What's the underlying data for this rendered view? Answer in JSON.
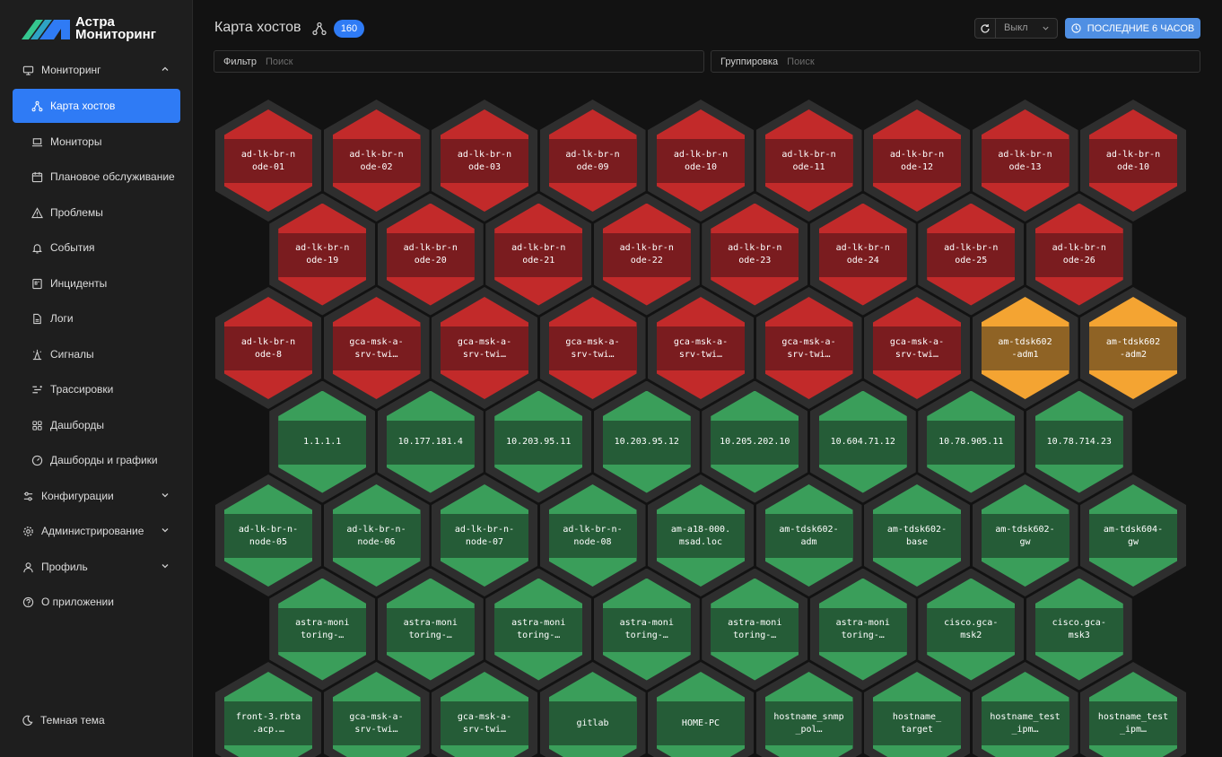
{
  "app": {
    "brand_line1": "Астра",
    "brand_line2": "Мониторинг"
  },
  "colors": {
    "accent": "#2f7bf5",
    "critical": "#c22a2a",
    "warning": "#f4a432",
    "ok": "#3a9e5a"
  },
  "sidebar": {
    "items": [
      {
        "label": "Мониторинг",
        "icon": "monitor-icon",
        "level": "top",
        "chevron": "up"
      },
      {
        "label": "Карта хостов",
        "icon": "network-icon",
        "level": "sub",
        "active": true
      },
      {
        "label": "Мониторы",
        "icon": "laptop-icon",
        "level": "sub"
      },
      {
        "label": "Плановое обслуживание",
        "icon": "calendar-icon",
        "level": "sub"
      },
      {
        "label": "Проблемы",
        "icon": "warning-icon",
        "level": "sub"
      },
      {
        "label": "События",
        "icon": "bell-icon",
        "level": "sub"
      },
      {
        "label": "Инциденты",
        "icon": "incident-icon",
        "level": "sub"
      },
      {
        "label": "Логи",
        "icon": "file-icon",
        "level": "sub"
      },
      {
        "label": "Сигналы",
        "icon": "signal-icon",
        "level": "sub"
      },
      {
        "label": "Трассировки",
        "icon": "trace-icon",
        "level": "sub"
      },
      {
        "label": "Дашборды",
        "icon": "grid-icon",
        "level": "sub"
      },
      {
        "label": "Дашборды и графики",
        "icon": "gauge-icon",
        "level": "sub"
      },
      {
        "label": "Конфигурации",
        "icon": "config-icon",
        "level": "top",
        "chevron": "down"
      },
      {
        "label": "Администрирование",
        "icon": "gear-icon",
        "level": "top",
        "chevron": "down"
      },
      {
        "label": "Профиль",
        "icon": "user-icon",
        "level": "top",
        "chevron": "down"
      },
      {
        "label": "О приложении",
        "icon": "help-icon",
        "level": "top"
      }
    ],
    "theme_label": "Темная тема"
  },
  "header": {
    "title": "Карта хостов",
    "count": "160",
    "refresh_value": "Выкл",
    "time_range_label": "ПОСЛЕДНИЕ 6 ЧАСОВ"
  },
  "filters": {
    "filter_label": "Фильтр",
    "filter_placeholder": "Поиск",
    "group_label": "Группировка",
    "group_placeholder": "Поиск"
  },
  "hosts": [
    [
      {
        "name": "ad-lk-br-n\node-01",
        "status": "critical"
      },
      {
        "name": "ad-lk-br-n\node-02",
        "status": "critical"
      },
      {
        "name": "ad-lk-br-n\node-03",
        "status": "critical"
      },
      {
        "name": "ad-lk-br-n\node-09",
        "status": "critical"
      },
      {
        "name": "ad-lk-br-n\node-10",
        "status": "critical"
      },
      {
        "name": "ad-lk-br-n\node-11",
        "status": "critical"
      },
      {
        "name": "ad-lk-br-n\node-12",
        "status": "critical"
      },
      {
        "name": "ad-lk-br-n\node-13",
        "status": "critical"
      },
      {
        "name": "ad-lk-br-n\node-10",
        "status": "critical"
      }
    ],
    [
      {
        "name": "ad-lk-br-n\node-19",
        "status": "critical"
      },
      {
        "name": "ad-lk-br-n\node-20",
        "status": "critical"
      },
      {
        "name": "ad-lk-br-n\node-21",
        "status": "critical"
      },
      {
        "name": "ad-lk-br-n\node-22",
        "status": "critical"
      },
      {
        "name": "ad-lk-br-n\node-23",
        "status": "critical"
      },
      {
        "name": "ad-lk-br-n\node-24",
        "status": "critical"
      },
      {
        "name": "ad-lk-br-n\node-25",
        "status": "critical"
      },
      {
        "name": "ad-lk-br-n\node-26",
        "status": "critical"
      }
    ],
    [
      {
        "name": "ad-lk-br-n\node-8",
        "status": "critical"
      },
      {
        "name": "gca-msk-a-\nsrv-twi…",
        "status": "critical"
      },
      {
        "name": "gca-msk-a-\nsrv-twi…",
        "status": "critical"
      },
      {
        "name": "gca-msk-a-\nsrv-twi…",
        "status": "critical"
      },
      {
        "name": "gca-msk-a-\nsrv-twi…",
        "status": "critical"
      },
      {
        "name": "gca-msk-a-\nsrv-twi…",
        "status": "critical"
      },
      {
        "name": "gca-msk-a-\nsrv-twi…",
        "status": "critical"
      },
      {
        "name": "am-tdsk602\n-adm1",
        "status": "warning"
      },
      {
        "name": "am-tdsk602\n-adm2",
        "status": "warning"
      }
    ],
    [
      {
        "name": "1.1.1.1",
        "status": "ok"
      },
      {
        "name": "10.177.181.4",
        "status": "ok"
      },
      {
        "name": "10.203.95.11",
        "status": "ok"
      },
      {
        "name": "10.203.95.12",
        "status": "ok"
      },
      {
        "name": "10.205.202.10",
        "status": "ok"
      },
      {
        "name": "10.604.71.12",
        "status": "ok"
      },
      {
        "name": "10.78.905.11",
        "status": "ok"
      },
      {
        "name": "10.78.714.23",
        "status": "ok"
      }
    ],
    [
      {
        "name": "ad-lk-br-n-\nnode-05",
        "status": "ok"
      },
      {
        "name": "ad-lk-br-n-\nnode-06",
        "status": "ok"
      },
      {
        "name": "ad-lk-br-n-\nnode-07",
        "status": "ok"
      },
      {
        "name": "ad-lk-br-n-\nnode-08",
        "status": "ok"
      },
      {
        "name": "am-a18-000.\nmsad.loc",
        "status": "ok"
      },
      {
        "name": "am-tdsk602-\nadm",
        "status": "ok"
      },
      {
        "name": "am-tdsk602-\nbase",
        "status": "ok"
      },
      {
        "name": "am-tdsk602-\ngw",
        "status": "ok"
      },
      {
        "name": "am-tdsk604-\ngw",
        "status": "ok"
      }
    ],
    [
      {
        "name": "astra-moni\ntoring-…",
        "status": "ok"
      },
      {
        "name": "astra-moni\ntoring-…",
        "status": "ok"
      },
      {
        "name": "astra-moni\ntoring-…",
        "status": "ok"
      },
      {
        "name": "astra-moni\ntoring-…",
        "status": "ok"
      },
      {
        "name": "astra-moni\ntoring-…",
        "status": "ok"
      },
      {
        "name": "astra-moni\ntoring-…",
        "status": "ok"
      },
      {
        "name": "cisco.gca-\nmsk2",
        "status": "ok"
      },
      {
        "name": "cisco.gca-\nmsk3",
        "status": "ok"
      }
    ],
    [
      {
        "name": "front-3.rbta\n.acp.…",
        "status": "ok"
      },
      {
        "name": "gca-msk-a-\nsrv-twi…",
        "status": "ok"
      },
      {
        "name": "gca-msk-a-\nsrv-twi…",
        "status": "ok"
      },
      {
        "name": "gitlab",
        "status": "ok"
      },
      {
        "name": "HOME-PC",
        "status": "ok"
      },
      {
        "name": "hostname_snmp\n_pol…",
        "status": "ok"
      },
      {
        "name": "hostname_\ntarget",
        "status": "ok"
      },
      {
        "name": "hostname_test\n_ipm…",
        "status": "ok"
      },
      {
        "name": "hostname_test\n_ipm…",
        "status": "ok"
      }
    ]
  ]
}
